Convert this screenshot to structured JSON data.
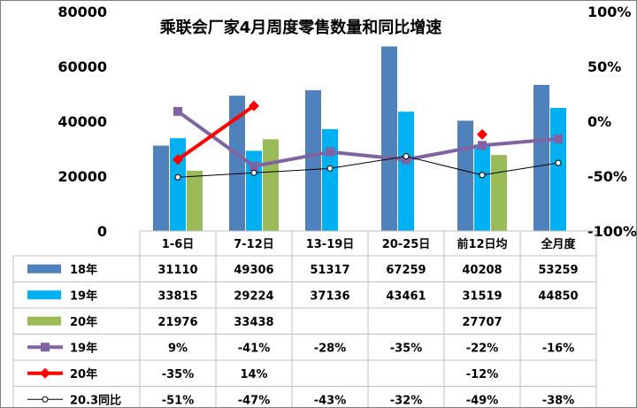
{
  "chart_data": {
    "type": "bar",
    "title": "乘联会厂家4月周度零售数量和同比增速",
    "categories": [
      "1-6日",
      "7-12日",
      "13-19日",
      "20-25日",
      "前12日均",
      "全月度"
    ],
    "y_left": {
      "ylim": [
        0,
        80000
      ],
      "ticks": [
        "0",
        "20000",
        "40000",
        "60000",
        "80000"
      ]
    },
    "y_right": {
      "ylim": [
        -100,
        100
      ],
      "ticks": [
        "-100%",
        "-50%",
        "0%",
        "50%",
        "100%"
      ]
    },
    "grid": false,
    "legend": "data-table",
    "bar_series": [
      {
        "name": "18年",
        "color": "#4f81bd",
        "values": [
          31110,
          49306,
          51317,
          67259,
          40208,
          53259
        ],
        "labels": [
          "31110",
          "49306",
          "51317",
          "67259",
          "40208",
          "53259"
        ]
      },
      {
        "name": "19年",
        "color": "#00b0f0",
        "values": [
          33815,
          29224,
          37136,
          43461,
          31519,
          44850
        ],
        "labels": [
          "33815",
          "29224",
          "37136",
          "43461",
          "31519",
          "44850"
        ]
      },
      {
        "name": "20年",
        "color": "#9bbb59",
        "values": [
          21976,
          33438,
          null,
          null,
          27707,
          null
        ],
        "labels": [
          "21976",
          "33438",
          "",
          "",
          "27707",
          ""
        ]
      }
    ],
    "line_series": [
      {
        "name": "19年",
        "color": "#8064a2",
        "marker": "square",
        "values": [
          9,
          -41,
          -28,
          -35,
          -22,
          -16
        ],
        "labels": [
          "9%",
          "-41%",
          "-28%",
          "-35%",
          "-22%",
          "-16%"
        ]
      },
      {
        "name": "20年",
        "color": "#ff0000",
        "marker": "diamond",
        "values": [
          -35,
          14,
          null,
          null,
          -12,
          null
        ],
        "labels": [
          "-35%",
          "14%",
          "",
          "",
          "-12%",
          ""
        ]
      },
      {
        "name": "20.3同比",
        "color": "#000000",
        "marker": "circle",
        "values": [
          -51,
          -47,
          -43,
          -32,
          -49,
          -38
        ],
        "labels": [
          "-51%",
          "-47%",
          "-43%",
          "-32%",
          "-49%",
          "-38%"
        ]
      }
    ]
  }
}
